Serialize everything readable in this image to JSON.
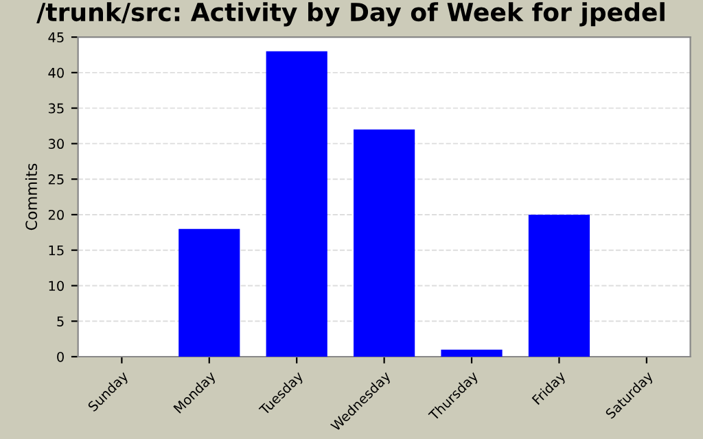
{
  "chart_data": {
    "type": "bar",
    "title": "/trunk/src: Activity by Day of Week for jpedel",
    "ylabel": "Commits",
    "categories": [
      "Sunday",
      "Monday",
      "Tuesday",
      "Wednesday",
      "Thursday",
      "Friday",
      "Saturday"
    ],
    "values": [
      0,
      18,
      43,
      32,
      1,
      20,
      0
    ],
    "color": "#0000ff",
    "ylim": [
      0,
      45
    ],
    "yticks": [
      0,
      5,
      10,
      15,
      20,
      25,
      30,
      35,
      40,
      45
    ],
    "grid": "y",
    "legend": false
  }
}
